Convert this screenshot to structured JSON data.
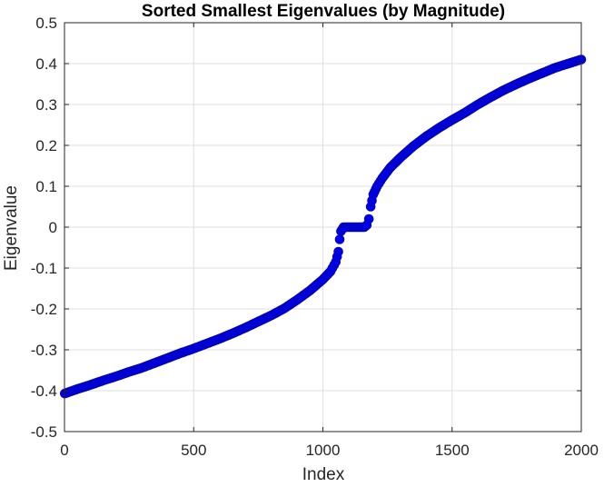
{
  "chart_data": {
    "type": "scatter",
    "title": "Sorted Smallest Eigenvalues (by Magnitude)",
    "xlabel": "Index",
    "ylabel": "Eigenvalue",
    "xlim": [
      0,
      2000
    ],
    "ylim": [
      -0.5,
      0.5
    ],
    "xticks": [
      "0",
      "500",
      "1000",
      "1500",
      "2000"
    ],
    "yticks": [
      "0.5",
      "0.4",
      "0.3",
      "0.2",
      "0.1",
      "0",
      "-0.1",
      "-0.2",
      "-0.3",
      "-0.4",
      "-0.5"
    ],
    "grid": true,
    "marker": "circle",
    "series": [
      {
        "color": "#0000e6",
        "points": [
          [
            1,
            -0.407
          ],
          [
            50,
            -0.396
          ],
          [
            100,
            -0.386
          ],
          [
            150,
            -0.375
          ],
          [
            200,
            -0.365
          ],
          [
            250,
            -0.354
          ],
          [
            300,
            -0.344
          ],
          [
            350,
            -0.332
          ],
          [
            400,
            -0.32
          ],
          [
            450,
            -0.308
          ],
          [
            500,
            -0.297
          ],
          [
            550,
            -0.285
          ],
          [
            600,
            -0.273
          ],
          [
            650,
            -0.26
          ],
          [
            700,
            -0.246
          ],
          [
            750,
            -0.231
          ],
          [
            800,
            -0.216
          ],
          [
            850,
            -0.199
          ],
          [
            900,
            -0.178
          ],
          [
            950,
            -0.155
          ],
          [
            1000,
            -0.128
          ],
          [
            1030,
            -0.108
          ],
          [
            1050,
            -0.085
          ],
          [
            1060,
            -0.06
          ],
          [
            1065,
            -0.03
          ],
          [
            1070,
            -0.01
          ],
          [
            1080,
            0.0
          ],
          [
            1100,
            0.0
          ],
          [
            1130,
            0.0
          ],
          [
            1160,
            0.0
          ],
          [
            1170,
            0.005
          ],
          [
            1178,
            0.02
          ],
          [
            1185,
            0.05
          ],
          [
            1195,
            0.08
          ],
          [
            1210,
            0.1
          ],
          [
            1230,
            0.12
          ],
          [
            1260,
            0.145
          ],
          [
            1300,
            0.17
          ],
          [
            1350,
            0.198
          ],
          [
            1400,
            0.222
          ],
          [
            1450,
            0.243
          ],
          [
            1500,
            0.262
          ],
          [
            1550,
            0.28
          ],
          [
            1600,
            0.3
          ],
          [
            1650,
            0.318
          ],
          [
            1700,
            0.335
          ],
          [
            1750,
            0.35
          ],
          [
            1800,
            0.364
          ],
          [
            1850,
            0.377
          ],
          [
            1900,
            0.39
          ],
          [
            1950,
            0.4
          ],
          [
            2000,
            0.41
          ]
        ]
      }
    ]
  }
}
